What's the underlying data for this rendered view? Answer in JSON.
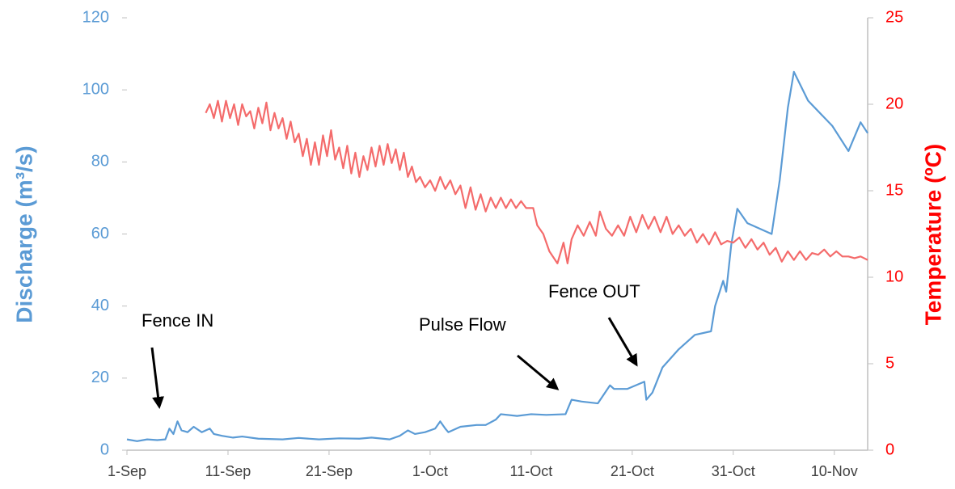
{
  "chart_data": {
    "type": "line",
    "xlabel": null,
    "ylabel": "Discharge (m³/s)",
    "y2label": "Temperature (ºC)",
    "xlim": [
      0,
      73.3
    ],
    "xticks": [
      {
        "value": 0,
        "label": "1-Sep"
      },
      {
        "value": 10,
        "label": "11-Sep"
      },
      {
        "value": 20,
        "label": "21-Sep"
      },
      {
        "value": 30,
        "label": "1-Oct"
      },
      {
        "value": 40,
        "label": "11-Oct"
      },
      {
        "value": 50,
        "label": "21-Oct"
      },
      {
        "value": 60,
        "label": "31-Oct"
      },
      {
        "value": 70,
        "label": "10-Nov"
      }
    ],
    "ylim": [
      0,
      120
    ],
    "yticks": [
      0,
      20,
      40,
      60,
      80,
      100,
      120
    ],
    "y2lim": [
      0,
      25
    ],
    "y2ticks": [
      0,
      5,
      10,
      15,
      20,
      25
    ],
    "annotations": [
      "Fence IN",
      "Pulse Flow",
      "Fence OUT"
    ],
    "series": [
      {
        "name": "Discharge",
        "color": "#5b9bd5",
        "x": [
          0,
          1,
          2,
          3,
          3.8,
          4.2,
          4.6,
          5,
          5.4,
          6,
          6.6,
          7.4,
          8.2,
          8.6,
          9.4,
          10.5,
          11.4,
          13,
          15.4,
          17,
          19,
          21,
          23,
          24.2,
          26,
          27,
          27.8,
          28.5,
          29.5,
          30.5,
          31,
          31.5,
          31.8,
          33,
          34.6,
          35.5,
          36.5,
          37,
          38.6,
          40,
          41.5,
          43.4,
          44,
          45,
          46.6,
          47.8,
          48.2,
          49.5,
          51.2,
          51.4,
          52,
          53,
          54.6,
          56.2,
          57.8,
          58.2,
          59,
          59.3,
          59.8,
          60.4,
          61.4,
          63.8,
          64.6,
          65.4,
          66,
          67.4,
          69.8,
          71.4,
          72.6,
          73.3
        ],
        "values": [
          3,
          2.5,
          3,
          2.8,
          3,
          6,
          4.5,
          8,
          5.5,
          5,
          6.5,
          5,
          6,
          4.5,
          4,
          3.5,
          3.8,
          3.2,
          3,
          3.4,
          3,
          3.3,
          3.2,
          3.5,
          3,
          4,
          5.5,
          4.5,
          5,
          6,
          8,
          6,
          5,
          6.5,
          7,
          7,
          8.5,
          10,
          9.5,
          10,
          9.8,
          10,
          14,
          13.5,
          13,
          18,
          17,
          17,
          19,
          14,
          16,
          23,
          28,
          32,
          33,
          40,
          47,
          44,
          57,
          67,
          63,
          60,
          75,
          95,
          105,
          97,
          90,
          83,
          91,
          88
        ]
      },
      {
        "name": "Temperature",
        "color": "#f46b6b",
        "axis": "y2",
        "x": [
          7.8,
          8.2,
          8.6,
          9,
          9.4,
          9.8,
          10.2,
          10.6,
          11,
          11.4,
          11.8,
          12.2,
          12.6,
          13,
          13.4,
          13.8,
          14.2,
          14.6,
          15,
          15.4,
          15.8,
          16.2,
          16.6,
          17,
          17.4,
          17.8,
          18.2,
          18.6,
          19,
          19.4,
          19.8,
          20.2,
          20.6,
          21,
          21.4,
          21.8,
          22.2,
          22.6,
          23,
          23.4,
          23.8,
          24.2,
          24.6,
          25,
          25.4,
          25.8,
          26.2,
          26.6,
          27,
          27.4,
          27.8,
          28.2,
          28.6,
          29,
          29.5,
          30,
          30.5,
          31,
          31.5,
          32,
          32.5,
          33,
          33.5,
          34,
          34.5,
          35,
          35.5,
          36,
          36.5,
          37,
          37.5,
          38,
          38.5,
          39,
          39.5,
          40.2,
          40.6,
          41.2,
          41.8,
          42.6,
          43.2,
          43.6,
          44,
          44.6,
          45.2,
          45.8,
          46.4,
          46.8,
          47.4,
          48,
          48.6,
          49.2,
          49.8,
          50.4,
          51,
          51.6,
          52.2,
          52.8,
          53.4,
          54,
          54.6,
          55.2,
          55.8,
          56.4,
          57,
          57.6,
          58.2,
          58.8,
          59.4,
          60,
          60.6,
          61.2,
          61.8,
          62.4,
          63,
          63.6,
          64.2,
          64.8,
          65.4,
          66,
          66.6,
          67.2,
          67.8,
          68.4,
          69,
          69.6,
          70.2,
          70.8,
          71.4,
          72,
          72.6,
          73.3
        ],
        "values": [
          19.5,
          20,
          19.2,
          20.2,
          19,
          20.2,
          19.2,
          20,
          18.8,
          20,
          19.3,
          19.6,
          18.6,
          19.8,
          18.9,
          20.1,
          18.5,
          19.5,
          18.6,
          19.2,
          18,
          19,
          17.8,
          18.3,
          17,
          18,
          16.5,
          17.8,
          16.5,
          18.2,
          17,
          18.5,
          16.8,
          17.5,
          16.3,
          17.6,
          16,
          17.2,
          15.8,
          17,
          16.2,
          17.5,
          16.4,
          17.6,
          16.5,
          17.7,
          16.6,
          17.4,
          16.2,
          17.2,
          15.8,
          16.4,
          15.5,
          15.8,
          15.2,
          15.6,
          15,
          15.8,
          15.1,
          15.6,
          14.8,
          15.3,
          14,
          15.2,
          13.9,
          14.8,
          13.8,
          14.6,
          14,
          14.6,
          14,
          14.5,
          14,
          14.4,
          14,
          14,
          13,
          12.5,
          11.5,
          10.8,
          12,
          10.8,
          12.2,
          13,
          12.4,
          13.2,
          12.4,
          13.8,
          12.8,
          12.4,
          13,
          12.4,
          13.5,
          12.6,
          13.6,
          12.8,
          13.5,
          12.6,
          13.5,
          12.5,
          13,
          12.4,
          12.8,
          12,
          12.5,
          11.9,
          12.6,
          11.9,
          12.1,
          12,
          12.3,
          11.7,
          12.2,
          11.6,
          12,
          11.3,
          11.7,
          10.9,
          11.5,
          11,
          11.5,
          11,
          11.4,
          11.3,
          11.6,
          11.2,
          11.5,
          11.2,
          11.2,
          11.1,
          11.2,
          11
        ]
      }
    ]
  }
}
